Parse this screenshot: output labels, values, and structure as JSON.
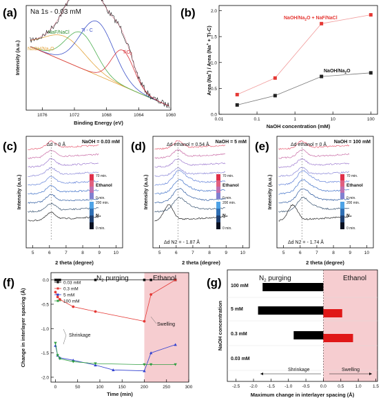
{
  "chart_data": [
    {
      "panel": "(a)",
      "type": "line",
      "title": "Na 1s - 0.03 mM",
      "xlabel": "Binding Energy (eV)",
      "ylabel": "Intensity (a.u.)",
      "x_ticks": [
        "1076",
        "1072",
        "1068",
        "1064",
        "1060"
      ],
      "xlim": [
        1078,
        1060
      ],
      "components": [
        {
          "name": "NaOH/Na2O",
          "color": "#e3a43c",
          "center": 1073.2
        },
        {
          "name": "NaF/NaCl",
          "color": "#4caf50",
          "center": 1071.2
        },
        {
          "name": "Ti - C",
          "color": "#3a4fc8",
          "center": 1069.2
        },
        {
          "name": "TiO2",
          "color": "#d8333a",
          "center": 1066.0
        }
      ]
    },
    {
      "panel": "(b)",
      "type": "line",
      "xlabel": "NaOH concentration (mM)",
      "ylabel": "Area (Na+) / Area (Na+ + Ti-C)",
      "xscale": "log",
      "x_ticks": [
        "0.01",
        "0.1",
        "1",
        "10",
        "100"
      ],
      "y_ticks": [
        "0.0",
        "0.5",
        "1.0",
        "1.5",
        "2.0"
      ],
      "ylim": [
        0,
        2.1
      ],
      "series": [
        {
          "name": "NaOH/Na2O + NaF/NaCl",
          "color": "#e53935",
          "x": [
            0.03,
            0.3,
            5,
            100
          ],
          "values": [
            0.38,
            0.7,
            1.75,
            1.92
          ]
        },
        {
          "name": "NaOH/Na2O",
          "color": "#222222",
          "x": [
            0.03,
            0.3,
            5,
            100
          ],
          "values": [
            0.18,
            0.36,
            0.73,
            0.8
          ]
        }
      ]
    },
    {
      "panel": "(c)",
      "type": "line",
      "title": "NaOH = 0.03 mM",
      "annotation": "Δd = 0 Å",
      "xlabel": "2 theta (degree)",
      "ylabel": "Intensity (a.u.)",
      "x_ticks": [
        "5",
        "6",
        "7",
        "8",
        "9",
        "10"
      ],
      "peak_shift": 0
    },
    {
      "panel": "(d)",
      "type": "line",
      "title": "NaOH = 5 mM",
      "annotation_top": "Δd ethanol = 0.54 Å",
      "annotation_bottom": "Δd N2 = - 1.87 Å",
      "xlabel": "2 theta (degree)",
      "ylabel": "Intensity (a.u.)",
      "x_ticks": [
        "5",
        "6",
        "7",
        "8",
        "9",
        "10"
      ],
      "peak_shift": 1
    },
    {
      "panel": "(e)",
      "type": "line",
      "title": "NaOH = 100 mM",
      "annotation_top": "Δd ethanol = 0 Å",
      "annotation_bottom": "Δd N2 = - 1.74 Å",
      "xlabel": "2 theta (degree)",
      "ylabel": "Intensity (a.u.)",
      "x_ticks": [
        "5",
        "6",
        "7",
        "8",
        "9",
        "10"
      ],
      "peak_shift": 1
    },
    {
      "panel": "(f)",
      "type": "line",
      "xlabel": "Time (min)",
      "ylabel": "Change in interlayer spacing (Å)",
      "x_ticks": [
        "0",
        "50",
        "100",
        "150",
        "200",
        "250",
        "300"
      ],
      "y_ticks": [
        "0.0",
        "-0.5",
        "-1.0",
        "-1.5",
        "-2.0"
      ],
      "xlim": [
        -10,
        300
      ],
      "ylim": [
        -2.1,
        0.15
      ],
      "region_labels": {
        "n2": "N2 purging",
        "ethanol": "Ethanol"
      },
      "ethanol_start": 200,
      "annotations": [
        "Shrinkage",
        "Swelling"
      ],
      "series": [
        {
          "name": "0.03 mM",
          "color": "#111111",
          "marker": "square",
          "x": [
            0,
            5,
            10,
            90,
            200,
            215,
            270
          ],
          "values": [
            0,
            0,
            0,
            0,
            0,
            0,
            0
          ]
        },
        {
          "name": "0.3 mM",
          "color": "#e53935",
          "marker": "circle",
          "x": [
            0,
            5,
            10,
            40,
            90,
            200,
            215,
            270
          ],
          "values": [
            -0.25,
            -0.35,
            -0.4,
            -0.55,
            -0.65,
            -0.85,
            -0.3,
            0
          ]
        },
        {
          "name": "5 mM",
          "color": "#2f3fd0",
          "marker": "triangle",
          "x": [
            0,
            5,
            10,
            40,
            90,
            130,
            200,
            215,
            270
          ],
          "values": [
            -1.35,
            -1.55,
            -1.6,
            -1.65,
            -1.75,
            -1.85,
            -1.87,
            -1.5,
            -1.33
          ]
        },
        {
          "name": "100 mM",
          "color": "#2e9e40",
          "marker": "triangle-down",
          "x": [
            0,
            5,
            10,
            40,
            90,
            200,
            215,
            270
          ],
          "values": [
            -1.3,
            -1.55,
            -1.62,
            -1.68,
            -1.72,
            -1.74,
            -1.74,
            -1.74
          ]
        }
      ]
    },
    {
      "panel": "(g)",
      "type": "bar",
      "xlabel": "Maximum change in interlayer spacing (Å)",
      "ylabel": "NaOH concentration",
      "x_ticks": [
        "-2.5",
        "-2.0",
        "-1.5",
        "-1.0",
        "-0.5",
        "0.0",
        "0.5",
        "1.0",
        "1.5"
      ],
      "xlim": [
        -2.75,
        1.55
      ],
      "region_labels": {
        "n2": "N2 purging",
        "ethanol": "Ethanol"
      },
      "annotations": [
        "Shrinkage",
        "Swelling"
      ],
      "categories": [
        "100 mM",
        "5 mM",
        "0.3 mM",
        "0.03 mM"
      ],
      "series": [
        {
          "name": "N2 purging",
          "color": "#000000",
          "values": [
            -1.74,
            -1.87,
            -0.85,
            0
          ]
        },
        {
          "name": "Ethanol",
          "color": "#e01818",
          "values": [
            0,
            0.54,
            0.85,
            0
          ]
        }
      ]
    }
  ]
}
